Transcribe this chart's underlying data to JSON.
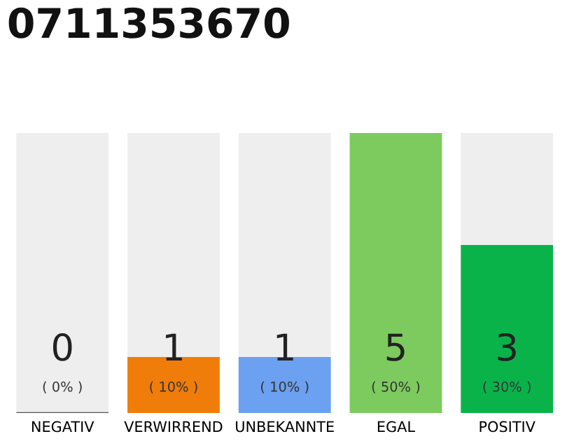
{
  "chart_data": {
    "type": "bar",
    "title": "0711353670",
    "categories": [
      "NEGATIV",
      "VERWIRREND",
      "UNBEKANNTE",
      "EGAL",
      "POSITIV"
    ],
    "values": [
      0,
      1,
      1,
      5,
      3
    ],
    "colors": [
      "#555555",
      "#f07d0a",
      "#6ca0f0",
      "#7dcb5f",
      "#0ab34a"
    ],
    "ylim": [
      0,
      5
    ],
    "data_labels": true,
    "annotations": [
      "( 0% )",
      "( 10% )",
      "( 10% )",
      "( 50% )",
      "( 30% )"
    ],
    "grid": false,
    "legend": false
  }
}
